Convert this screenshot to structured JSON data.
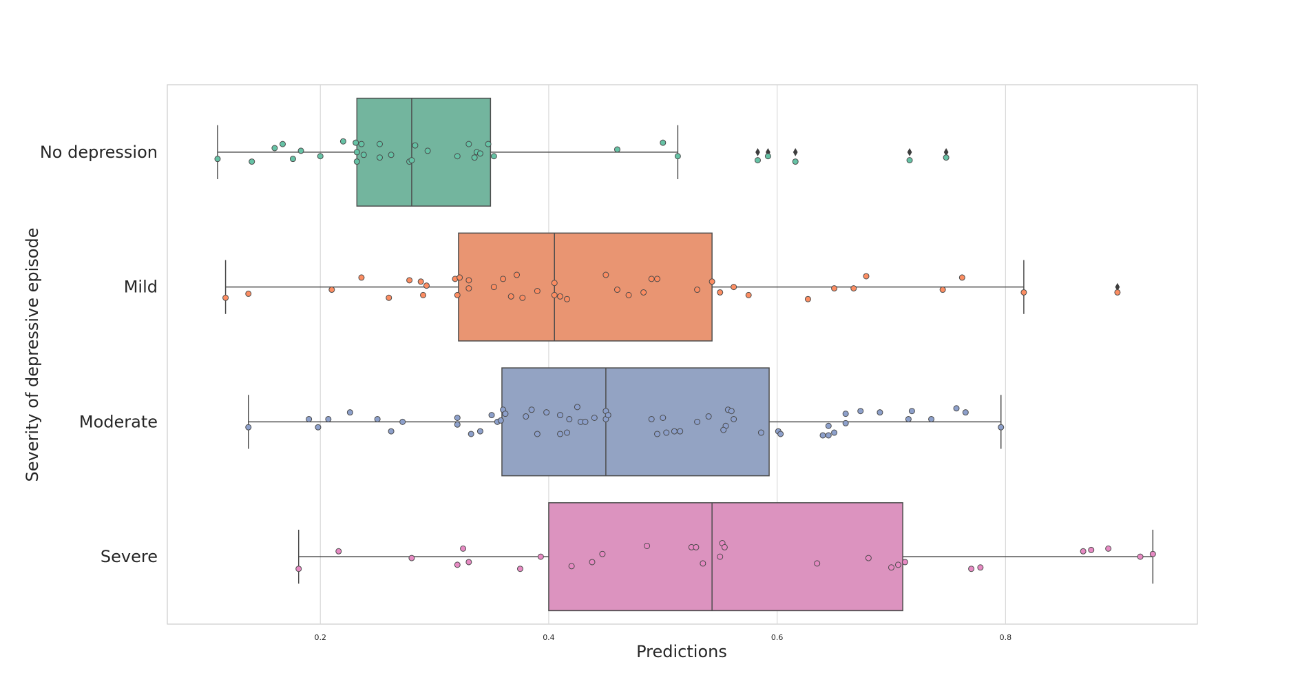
{
  "chart_data": {
    "type": "box",
    "orientation": "horizontal",
    "xlabel": "Predictions",
    "ylabel": "Severity of depressive episode",
    "xlim": [
      0.066,
      0.968
    ],
    "xticks": [
      0.2,
      0.4,
      0.6,
      0.8
    ],
    "xtick_labels": [
      "0.2",
      "0.4",
      "0.6",
      "0.8"
    ],
    "grid": "vertical",
    "categories": [
      "No depression",
      "Mild",
      "Moderate",
      "Severe"
    ],
    "colors": [
      "#73b59e",
      "#e99572",
      "#93a3c3",
      "#dc93bf"
    ],
    "point_colors": [
      "#66c2a5",
      "#fc8d62",
      "#8da0cb",
      "#e78ac3"
    ],
    "boxes": [
      {
        "whisker_low": 0.11,
        "q1": 0.232,
        "median": 0.28,
        "q3": 0.349,
        "whisker_high": 0.513,
        "outliers": [
          0.583,
          0.592,
          0.616,
          0.716,
          0.748
        ]
      },
      {
        "whisker_low": 0.117,
        "q1": 0.321,
        "median": 0.405,
        "q3": 0.543,
        "whisker_high": 0.816,
        "outliers": [
          0.898
        ]
      },
      {
        "whisker_low": 0.137,
        "q1": 0.359,
        "median": 0.45,
        "q3": 0.593,
        "whisker_high": 0.796,
        "outliers": []
      },
      {
        "whisker_low": 0.181,
        "q1": 0.4,
        "median": 0.543,
        "q3": 0.71,
        "whisker_high": 0.929,
        "outliers": []
      }
    ],
    "points": [
      [
        {
          "x": 0.11,
          "j": 0.05
        },
        {
          "x": 0.14,
          "j": 0.07
        },
        {
          "x": 0.16,
          "j": -0.03
        },
        {
          "x": 0.167,
          "j": -0.06
        },
        {
          "x": 0.176,
          "j": 0.05
        },
        {
          "x": 0.183,
          "j": -0.01
        },
        {
          "x": 0.2,
          "j": 0.03
        },
        {
          "x": 0.22,
          "j": -0.08
        },
        {
          "x": 0.231,
          "j": -0.07
        },
        {
          "x": 0.232,
          "j": 0.0
        },
        {
          "x": 0.232,
          "j": 0.07
        },
        {
          "x": 0.236,
          "j": -0.06
        },
        {
          "x": 0.238,
          "j": 0.02
        },
        {
          "x": 0.252,
          "j": -0.06
        },
        {
          "x": 0.252,
          "j": 0.04
        },
        {
          "x": 0.262,
          "j": 0.02
        },
        {
          "x": 0.278,
          "j": 0.07
        },
        {
          "x": 0.28,
          "j": 0.06
        },
        {
          "x": 0.283,
          "j": -0.05
        },
        {
          "x": 0.294,
          "j": -0.01
        },
        {
          "x": 0.32,
          "j": 0.03
        },
        {
          "x": 0.33,
          "j": -0.06
        },
        {
          "x": 0.335,
          "j": 0.04
        },
        {
          "x": 0.337,
          "j": 0.0
        },
        {
          "x": 0.34,
          "j": 0.01
        },
        {
          "x": 0.347,
          "j": -0.06
        },
        {
          "x": 0.352,
          "j": 0.03
        },
        {
          "x": 0.46,
          "j": -0.02
        },
        {
          "x": 0.5,
          "j": -0.07
        },
        {
          "x": 0.513,
          "j": 0.03
        },
        {
          "x": 0.583,
          "j": 0.06
        },
        {
          "x": 0.592,
          "j": 0.03
        },
        {
          "x": 0.616,
          "j": 0.07
        },
        {
          "x": 0.716,
          "j": 0.06
        },
        {
          "x": 0.748,
          "j": 0.04
        }
      ],
      [
        {
          "x": 0.117,
          "j": 0.08
        },
        {
          "x": 0.137,
          "j": 0.05
        },
        {
          "x": 0.21,
          "j": 0.02
        },
        {
          "x": 0.236,
          "j": -0.07
        },
        {
          "x": 0.26,
          "j": 0.08
        },
        {
          "x": 0.278,
          "j": -0.05
        },
        {
          "x": 0.29,
          "j": 0.06
        },
        {
          "x": 0.288,
          "j": -0.04
        },
        {
          "x": 0.293,
          "j": -0.01
        },
        {
          "x": 0.318,
          "j": -0.06
        },
        {
          "x": 0.32,
          "j": 0.06
        },
        {
          "x": 0.322,
          "j": -0.07
        },
        {
          "x": 0.33,
          "j": -0.05
        },
        {
          "x": 0.33,
          "j": 0.01
        },
        {
          "x": 0.352,
          "j": 0.0
        },
        {
          "x": 0.36,
          "j": -0.06
        },
        {
          "x": 0.367,
          "j": 0.07
        },
        {
          "x": 0.372,
          "j": -0.09
        },
        {
          "x": 0.377,
          "j": 0.08
        },
        {
          "x": 0.39,
          "j": 0.03
        },
        {
          "x": 0.405,
          "j": -0.03
        },
        {
          "x": 0.405,
          "j": 0.06
        },
        {
          "x": 0.41,
          "j": 0.07
        },
        {
          "x": 0.416,
          "j": 0.09
        },
        {
          "x": 0.45,
          "j": -0.09
        },
        {
          "x": 0.46,
          "j": 0.02
        },
        {
          "x": 0.47,
          "j": 0.06
        },
        {
          "x": 0.49,
          "j": -0.06
        },
        {
          "x": 0.495,
          "j": -0.06
        },
        {
          "x": 0.483,
          "j": 0.04
        },
        {
          "x": 0.53,
          "j": 0.02
        },
        {
          "x": 0.543,
          "j": -0.04
        },
        {
          "x": 0.55,
          "j": 0.04
        },
        {
          "x": 0.562,
          "j": 0.0
        },
        {
          "x": 0.575,
          "j": 0.06
        },
        {
          "x": 0.627,
          "j": 0.09
        },
        {
          "x": 0.65,
          "j": 0.01
        },
        {
          "x": 0.667,
          "j": 0.01
        },
        {
          "x": 0.678,
          "j": -0.08
        },
        {
          "x": 0.745,
          "j": 0.02
        },
        {
          "x": 0.762,
          "j": -0.07
        },
        {
          "x": 0.816,
          "j": 0.04
        },
        {
          "x": 0.898,
          "j": 0.04
        }
      ],
      [
        {
          "x": 0.137,
          "j": 0.04
        },
        {
          "x": 0.19,
          "j": -0.02
        },
        {
          "x": 0.198,
          "j": 0.04
        },
        {
          "x": 0.207,
          "j": -0.02
        },
        {
          "x": 0.226,
          "j": -0.07
        },
        {
          "x": 0.25,
          "j": -0.02
        },
        {
          "x": 0.262,
          "j": 0.07
        },
        {
          "x": 0.272,
          "j": 0.0
        },
        {
          "x": 0.32,
          "j": -0.03
        },
        {
          "x": 0.32,
          "j": 0.02
        },
        {
          "x": 0.332,
          "j": 0.09
        },
        {
          "x": 0.34,
          "j": 0.07
        },
        {
          "x": 0.35,
          "j": -0.05
        },
        {
          "x": 0.355,
          "j": 0.0
        },
        {
          "x": 0.358,
          "j": -0.01
        },
        {
          "x": 0.36,
          "j": -0.09
        },
        {
          "x": 0.362,
          "j": -0.06
        },
        {
          "x": 0.38,
          "j": -0.04
        },
        {
          "x": 0.385,
          "j": -0.09
        },
        {
          "x": 0.39,
          "j": 0.09
        },
        {
          "x": 0.398,
          "j": -0.07
        },
        {
          "x": 0.41,
          "j": -0.05
        },
        {
          "x": 0.41,
          "j": 0.09
        },
        {
          "x": 0.416,
          "j": 0.08
        },
        {
          "x": 0.418,
          "j": -0.02
        },
        {
          "x": 0.425,
          "j": -0.11
        },
        {
          "x": 0.428,
          "j": 0.0
        },
        {
          "x": 0.432,
          "j": 0.0
        },
        {
          "x": 0.44,
          "j": -0.03
        },
        {
          "x": 0.45,
          "j": -0.08
        },
        {
          "x": 0.45,
          "j": -0.02
        },
        {
          "x": 0.452,
          "j": -0.05
        },
        {
          "x": 0.49,
          "j": -0.02
        },
        {
          "x": 0.495,
          "j": 0.09
        },
        {
          "x": 0.5,
          "j": -0.03
        },
        {
          "x": 0.503,
          "j": 0.08
        },
        {
          "x": 0.51,
          "j": 0.07
        },
        {
          "x": 0.515,
          "j": 0.07
        },
        {
          "x": 0.53,
          "j": 0.0
        },
        {
          "x": 0.54,
          "j": -0.04
        },
        {
          "x": 0.555,
          "j": 0.03
        },
        {
          "x": 0.553,
          "j": 0.06
        },
        {
          "x": 0.557,
          "j": -0.09
        },
        {
          "x": 0.56,
          "j": -0.08
        },
        {
          "x": 0.562,
          "j": -0.02
        },
        {
          "x": 0.586,
          "j": 0.08
        },
        {
          "x": 0.601,
          "j": 0.07
        },
        {
          "x": 0.603,
          "j": 0.09
        },
        {
          "x": 0.64,
          "j": 0.1
        },
        {
          "x": 0.645,
          "j": 0.03
        },
        {
          "x": 0.645,
          "j": 0.1
        },
        {
          "x": 0.65,
          "j": 0.08
        },
        {
          "x": 0.66,
          "j": 0.01
        },
        {
          "x": 0.66,
          "j": -0.06
        },
        {
          "x": 0.673,
          "j": -0.08
        },
        {
          "x": 0.69,
          "j": -0.07
        },
        {
          "x": 0.715,
          "j": -0.02
        },
        {
          "x": 0.718,
          "j": -0.08
        },
        {
          "x": 0.735,
          "j": -0.02
        },
        {
          "x": 0.757,
          "j": -0.1
        },
        {
          "x": 0.765,
          "j": -0.07
        },
        {
          "x": 0.796,
          "j": 0.04
        }
      ],
      [
        {
          "x": 0.181,
          "j": 0.09
        },
        {
          "x": 0.216,
          "j": -0.04
        },
        {
          "x": 0.28,
          "j": 0.01
        },
        {
          "x": 0.32,
          "j": 0.06
        },
        {
          "x": 0.33,
          "j": 0.04
        },
        {
          "x": 0.325,
          "j": -0.06
        },
        {
          "x": 0.375,
          "j": 0.09
        },
        {
          "x": 0.393,
          "j": 0.0
        },
        {
          "x": 0.42,
          "j": 0.07
        },
        {
          "x": 0.438,
          "j": 0.04
        },
        {
          "x": 0.447,
          "j": -0.02
        },
        {
          "x": 0.486,
          "j": -0.08
        },
        {
          "x": 0.525,
          "j": -0.07
        },
        {
          "x": 0.529,
          "j": -0.07
        },
        {
          "x": 0.535,
          "j": 0.05
        },
        {
          "x": 0.55,
          "j": 0.0
        },
        {
          "x": 0.552,
          "j": -0.1
        },
        {
          "x": 0.554,
          "j": -0.07
        },
        {
          "x": 0.635,
          "j": 0.05
        },
        {
          "x": 0.68,
          "j": 0.01
        },
        {
          "x": 0.7,
          "j": 0.08
        },
        {
          "x": 0.706,
          "j": 0.06
        },
        {
          "x": 0.712,
          "j": 0.04
        },
        {
          "x": 0.77,
          "j": 0.09
        },
        {
          "x": 0.778,
          "j": 0.08
        },
        {
          "x": 0.868,
          "j": -0.04
        },
        {
          "x": 0.875,
          "j": -0.05
        },
        {
          "x": 0.89,
          "j": -0.06
        },
        {
          "x": 0.918,
          "j": 0.0
        },
        {
          "x": 0.929,
          "j": -0.02
        }
      ]
    ]
  }
}
